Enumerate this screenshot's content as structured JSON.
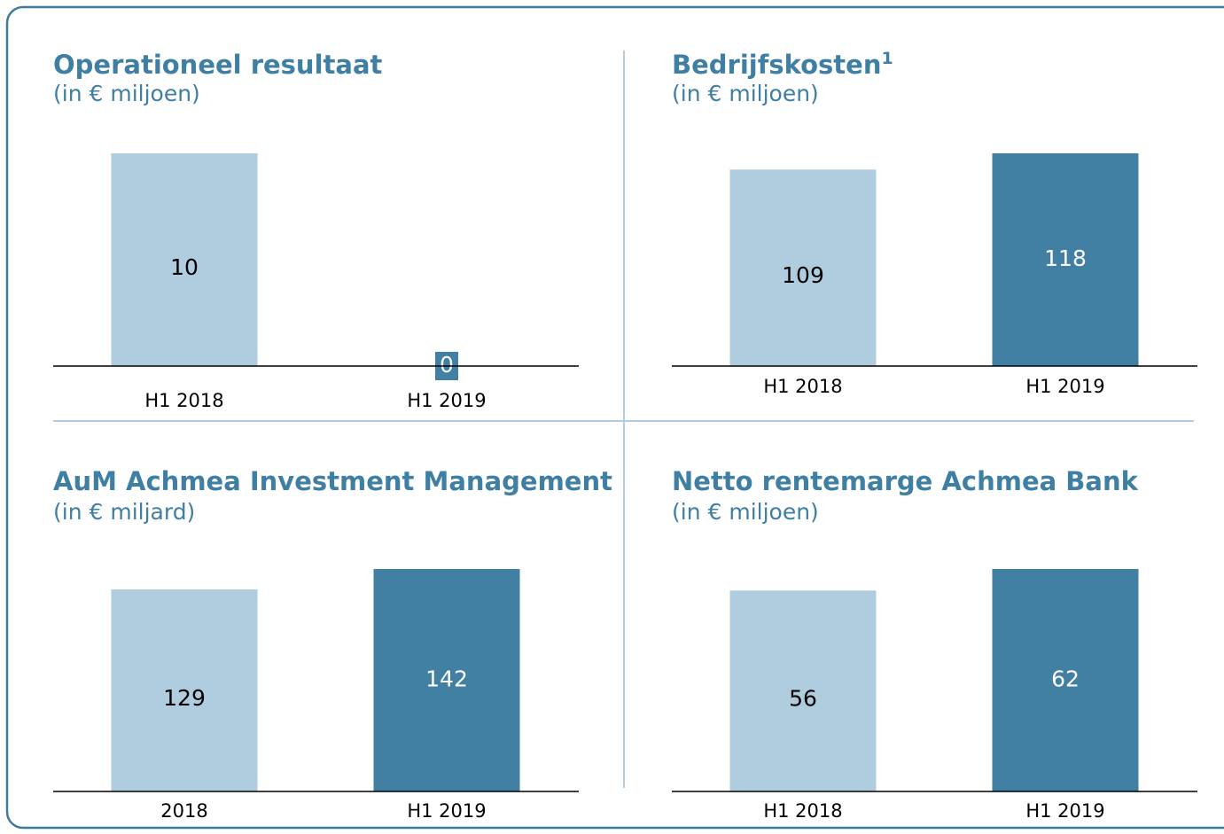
{
  "chart_data": [
    {
      "type": "bar",
      "title": "Operationeel resultaat",
      "subtitle": "(in € miljoen)",
      "categories": [
        "H1 2018",
        "H1 2019"
      ],
      "values": [
        10,
        0
      ],
      "colors": [
        "#afcddf",
        "#417fa3"
      ]
    },
    {
      "type": "bar",
      "title": "Bedrijfskosten",
      "title_superscript": "1",
      "subtitle": "(in € miljoen)",
      "categories": [
        "H1 2018",
        "H1 2019"
      ],
      "values": [
        109,
        118
      ],
      "colors": [
        "#afcddf",
        "#417fa3"
      ]
    },
    {
      "type": "bar",
      "title": "AuM Achmea Investment Management",
      "subtitle": "(in € miljard)",
      "categories": [
        "2018",
        "H1 2019"
      ],
      "values": [
        129,
        142
      ],
      "colors": [
        "#afcddf",
        "#417fa3"
      ]
    },
    {
      "type": "bar",
      "title": "Netto rentemarge Achmea Bank",
      "subtitle": "(in € miljoen)",
      "categories": [
        "H1 2018",
        "H1 2019"
      ],
      "values": [
        56,
        62
      ],
      "colors": [
        "#afcddf",
        "#417fa3"
      ]
    }
  ]
}
